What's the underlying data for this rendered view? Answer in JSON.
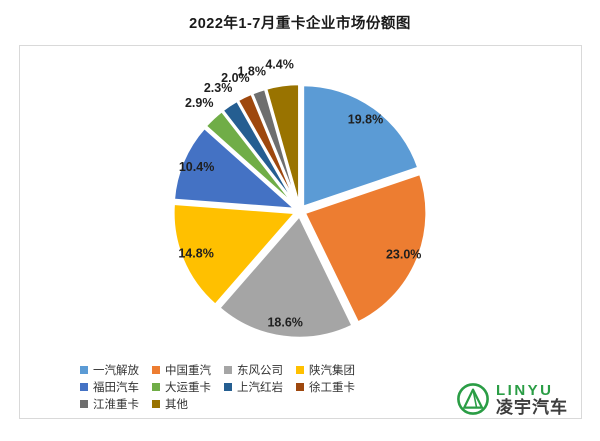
{
  "title": "2022年1-7月重卡企业市场份额图",
  "chart_data": {
    "type": "pie",
    "title": "2022年1-7月重卡企业市场份额图",
    "start_angle_deg": 0,
    "direction": "clockwise",
    "exploded": true,
    "legend_position": "bottom",
    "label_format": "value_one_decimal_percent",
    "label_color": "#1f1f1f",
    "slices": [
      {
        "label": "一汽解放",
        "value": 19.8,
        "display": "19.8%",
        "color": "#5B9BD5"
      },
      {
        "label": "中国重汽",
        "value": 23.0,
        "display": "23.0%",
        "color": "#ED7D31"
      },
      {
        "label": "东风公司",
        "value": 18.6,
        "display": "18.6%",
        "color": "#A5A5A5"
      },
      {
        "label": "陕汽集团",
        "value": 14.8,
        "display": "14.8%",
        "color": "#FFC000"
      },
      {
        "label": "福田汽车",
        "value": 10.4,
        "display": "10.4%",
        "color": "#4472C4"
      },
      {
        "label": "大运重卡",
        "value": 2.9,
        "display": "2.9%",
        "color": "#70AD47"
      },
      {
        "label": "上汽红岩",
        "value": 2.3,
        "display": "2.3%",
        "color": "#255E91"
      },
      {
        "label": "徐工重卡",
        "value": 2.0,
        "display": "2.0%",
        "color": "#9E480E"
      },
      {
        "label": "江淮重卡",
        "value": 1.8,
        "display": "1.8%",
        "color": "#6E6E6E"
      },
      {
        "label": "其他",
        "value": 4.4,
        "display": "4.4%",
        "color": "#997300"
      }
    ]
  },
  "logo": {
    "brand_en": "LINYU",
    "brand_cn": "凌宇汽车",
    "green": "#2a9d45"
  }
}
